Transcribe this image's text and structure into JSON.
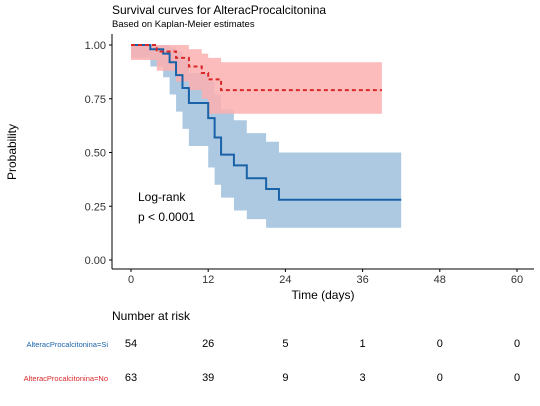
{
  "title": "Survival curves for AlteracProcalcitonina",
  "subtitle": "Based on Kaplan-Meier estimates",
  "annotation": {
    "line1": "Log-rank",
    "line2": "p < 0.0001"
  },
  "risk_table": {
    "title": "Number at risk",
    "rows": [
      {
        "label": "AlteracProcalcitonina=Si",
        "color": "#1a62a8",
        "values": [
          "54",
          "26",
          "5",
          "1",
          "0",
          "0"
        ]
      },
      {
        "label": "AlteracProcalcitonina=No",
        "color": "#d8282a",
        "values": [
          "63",
          "39",
          "9",
          "3",
          "0",
          "0"
        ]
      }
    ]
  },
  "chart_data": {
    "type": "line",
    "title": "Survival curves for AlteracProcalcitonina",
    "subtitle": "Based on Kaplan-Meier estimates",
    "xlabel": "Time (days)",
    "ylabel": "Probability",
    "xlim": [
      0,
      60
    ],
    "ylim": [
      0,
      1
    ],
    "xticks": [
      "0",
      "12",
      "24",
      "36",
      "48",
      "60"
    ],
    "yticks": [
      "0.00",
      "0.25",
      "0.50",
      "0.75",
      "1.00"
    ],
    "grid": false,
    "series": [
      {
        "name": "AlteracProcalcitonina=Si",
        "color": "#1a62a8",
        "ci_color": "#a9c6e0",
        "line_style": "solid",
        "x": [
          0,
          3,
          5,
          6,
          7,
          8,
          9,
          12,
          13,
          14,
          16,
          18,
          21,
          23,
          42
        ],
        "y": [
          1.0,
          0.98,
          0.96,
          0.92,
          0.86,
          0.8,
          0.73,
          0.66,
          0.57,
          0.49,
          0.44,
          0.38,
          0.33,
          0.28,
          0.28
        ],
        "lower": [
          1.0,
          0.94,
          0.9,
          0.85,
          0.77,
          0.69,
          0.61,
          0.53,
          0.43,
          0.35,
          0.29,
          0.23,
          0.19,
          0.15,
          0.15
        ],
        "upper": [
          1.0,
          1.0,
          1.0,
          0.99,
          0.97,
          0.93,
          0.87,
          0.83,
          0.77,
          0.7,
          0.65,
          0.59,
          0.55,
          0.5,
          0.5
        ]
      },
      {
        "name": "AlteracProcalcitonina=No",
        "color": "#d8282a",
        "ci_color": "#fcb0b0",
        "line_style": "dashed",
        "x": [
          0,
          4,
          7,
          9,
          11,
          12,
          14,
          39
        ],
        "y": [
          1.0,
          0.97,
          0.94,
          0.9,
          0.87,
          0.84,
          0.79,
          0.79
        ],
        "lower": [
          1.0,
          0.93,
          0.88,
          0.83,
          0.79,
          0.75,
          0.68,
          0.68
        ],
        "upper": [
          1.0,
          1.0,
          1.0,
          0.98,
          0.96,
          0.94,
          0.92,
          0.92
        ]
      }
    ]
  }
}
